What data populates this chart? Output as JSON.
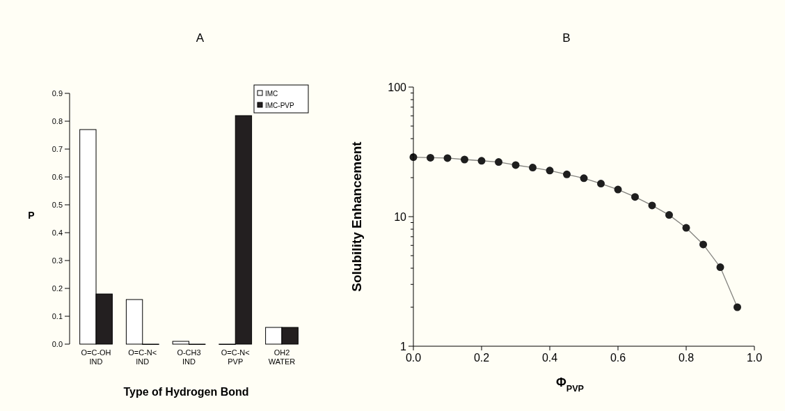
{
  "chart_data": [
    {
      "type": "bar",
      "title": "A",
      "xlabel": "Type of Hydrogen Bond",
      "ylabel": "P",
      "categories": [
        "O=C-OH\nIND",
        "O=C-N<\nIND",
        "O-CH3\nIND",
        "O=C-N<\nPVP",
        "OH2\nWATER"
      ],
      "series": [
        {
          "name": "IMC",
          "color": "#ffffff",
          "values": [
            0.77,
            0.16,
            0.01,
            0,
            0.06
          ]
        },
        {
          "name": "IMC-PVP",
          "color": "#231f20",
          "values": [
            0.18,
            0,
            0,
            0.82,
            0.06
          ]
        }
      ],
      "ylim": [
        0,
        0.9
      ],
      "yticks": [
        {
          "value": 0,
          "label": "0.0"
        },
        0.1,
        0.2,
        0.3,
        0.4,
        0.5,
        0.6,
        0.7,
        0.8,
        0.9
      ],
      "legend": "top right",
      "grid": false
    },
    {
      "type": "line",
      "title": "B",
      "xlabel": "Φ$_{PVP}$",
      "ylabel": "Solubility Enhancement",
      "log": "y",
      "marker": "circle",
      "grid": false,
      "x": [
        0,
        0.05,
        0.1,
        0.15,
        0.2,
        0.25,
        0.3,
        0.35,
        0.4,
        0.45,
        0.5,
        0.55,
        0.6,
        0.65,
        0.7,
        0.75,
        0.8,
        0.85,
        0.9,
        0.95
      ],
      "series": [
        {
          "color": "#1e1e1e",
          "values": [
            28.8,
            28.5,
            28.3,
            27.6,
            27.0,
            26.4,
            25.0,
            23.9,
            22.7,
            21.2,
            19.8,
            18.0,
            16.2,
            14.2,
            12.2,
            10.3,
            8.2,
            6.1,
            4.07,
            2.0
          ]
        }
      ],
      "xlim": [
        0,
        1
      ],
      "xticks": [
        {
          "value": 0,
          "label": "0.0"
        },
        0.2,
        0.4,
        0.6,
        0.8,
        {
          "value": 1,
          "label": "1.0"
        }
      ],
      "ylim": [
        1,
        100
      ],
      "yticks": [
        1,
        {
          "value": 2,
          "label": null
        },
        {
          "value": 3,
          "label": null
        },
        {
          "value": 4,
          "label": null
        },
        {
          "value": 5,
          "label": null
        },
        {
          "value": 6,
          "label": null
        },
        {
          "value": 7,
          "label": null
        },
        {
          "value": 8,
          "label": null
        },
        {
          "value": 9,
          "label": null
        },
        10,
        {
          "value": 20,
          "label": null
        },
        {
          "value": 30,
          "label": null
        },
        {
          "value": 40,
          "label": null
        },
        {
          "value": 50,
          "label": null
        },
        {
          "value": 60,
          "label": null
        },
        {
          "value": 70,
          "label": null
        },
        {
          "value": 80,
          "label": null
        },
        {
          "value": 90,
          "label": null
        },
        100
      ]
    }
  ]
}
